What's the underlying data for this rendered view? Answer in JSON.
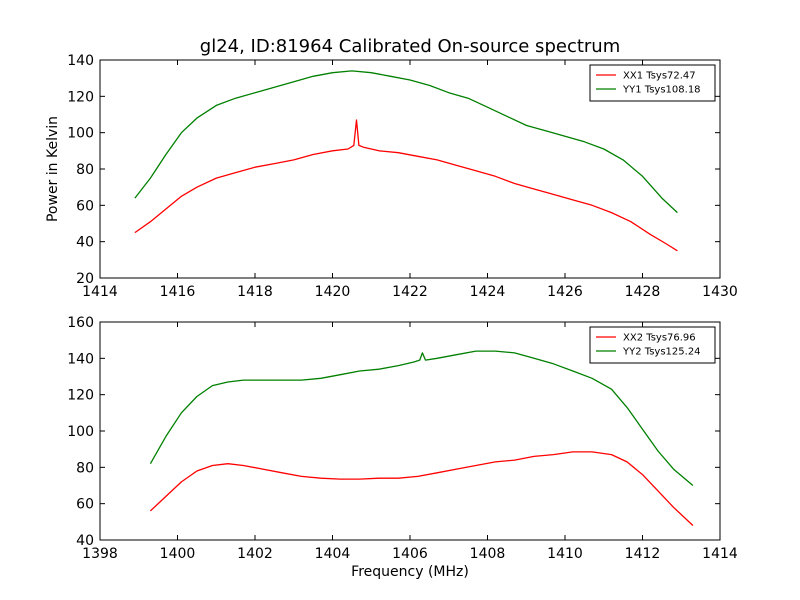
{
  "figure": {
    "title": "gl24, ID:81964 Calibrated On-source spectrum"
  },
  "chart_data": [
    {
      "type": "line",
      "title": "gl24, ID:81964 Calibrated On-source spectrum",
      "xlabel": "",
      "ylabel": "Power in Kelvin",
      "xlim": [
        1414,
        1430
      ],
      "ylim": [
        20,
        140
      ],
      "xticks": [
        1414,
        1416,
        1418,
        1420,
        1422,
        1424,
        1426,
        1428,
        1430
      ],
      "yticks": [
        20,
        40,
        60,
        80,
        100,
        120,
        140
      ],
      "grid": false,
      "legend": "top-right",
      "series": [
        {
          "name": "XX1 Tsys72.47",
          "color": "#ff0000",
          "x": [
            1414.9,
            1415.3,
            1415.7,
            1416.1,
            1416.5,
            1417.0,
            1417.5,
            1418.0,
            1418.5,
            1419.0,
            1419.5,
            1420.0,
            1420.4,
            1420.55,
            1420.62,
            1420.68,
            1420.8,
            1421.2,
            1421.7,
            1422.2,
            1422.7,
            1423.2,
            1423.7,
            1424.2,
            1424.7,
            1425.2,
            1425.7,
            1426.2,
            1426.7,
            1427.2,
            1427.7,
            1428.2,
            1428.6,
            1428.9
          ],
          "y": [
            45,
            51,
            58,
            65,
            70,
            75,
            78,
            81,
            83,
            85,
            88,
            90,
            91,
            93,
            107,
            93,
            92,
            90,
            89,
            87,
            85,
            82,
            79,
            76,
            72,
            69,
            66,
            63,
            60,
            56,
            51,
            44,
            39,
            35
          ]
        },
        {
          "name": "YY1 Tsys108.18",
          "color": "#008000",
          "x": [
            1414.9,
            1415.3,
            1415.7,
            1416.1,
            1416.5,
            1417.0,
            1417.5,
            1418.0,
            1418.5,
            1419.0,
            1419.5,
            1420.0,
            1420.5,
            1421.0,
            1421.5,
            1422.0,
            1422.5,
            1423.0,
            1423.5,
            1424.0,
            1424.5,
            1425.0,
            1425.5,
            1426.0,
            1426.5,
            1427.0,
            1427.5,
            1428.0,
            1428.5,
            1428.9
          ],
          "y": [
            64,
            75,
            88,
            100,
            108,
            115,
            119,
            122,
            125,
            128,
            131,
            133,
            134,
            133,
            131,
            129,
            126,
            122,
            119,
            114,
            109,
            104,
            101,
            98,
            95,
            91,
            85,
            76,
            64,
            56
          ]
        }
      ]
    },
    {
      "type": "line",
      "title": "",
      "xlabel": "Frequency (MHz)",
      "ylabel": "",
      "xlim": [
        1398,
        1414
      ],
      "ylim": [
        40,
        160
      ],
      "xticks": [
        1398,
        1400,
        1402,
        1404,
        1406,
        1408,
        1410,
        1412,
        1414
      ],
      "yticks": [
        40,
        60,
        80,
        100,
        120,
        140,
        160
      ],
      "grid": false,
      "legend": "top-right",
      "series": [
        {
          "name": "XX2 Tsys76.96",
          "color": "#ff0000",
          "x": [
            1399.3,
            1399.7,
            1400.1,
            1400.5,
            1400.9,
            1401.3,
            1401.7,
            1402.2,
            1402.7,
            1403.2,
            1403.7,
            1404.2,
            1404.7,
            1405.2,
            1405.7,
            1406.2,
            1406.7,
            1407.2,
            1407.7,
            1408.2,
            1408.7,
            1409.2,
            1409.7,
            1410.2,
            1410.7,
            1411.2,
            1411.6,
            1412.0,
            1412.4,
            1412.8,
            1413.3
          ],
          "y": [
            56,
            64,
            72,
            78,
            81,
            82,
            81,
            79,
            77,
            75,
            74,
            73.5,
            73.5,
            74,
            74,
            75,
            77,
            79,
            81,
            83,
            84,
            86,
            87,
            88.5,
            88.5,
            87,
            83,
            76,
            67,
            58,
            48
          ]
        },
        {
          "name": "YY2 Tsys125.24",
          "color": "#008000",
          "x": [
            1399.3,
            1399.7,
            1400.1,
            1400.5,
            1400.9,
            1401.3,
            1401.7,
            1402.2,
            1402.7,
            1403.2,
            1403.7,
            1404.2,
            1404.7,
            1405.2,
            1405.7,
            1406.1,
            1406.25,
            1406.32,
            1406.4,
            1406.7,
            1407.2,
            1407.7,
            1408.2,
            1408.7,
            1409.2,
            1409.7,
            1410.2,
            1410.7,
            1411.2,
            1411.6,
            1412.0,
            1412.4,
            1412.8,
            1413.3
          ],
          "y": [
            82,
            97,
            110,
            119,
            125,
            127,
            128,
            128,
            128,
            128,
            129,
            131,
            133,
            134,
            136,
            138,
            139,
            143,
            139,
            140,
            142,
            144,
            144,
            143,
            140,
            137,
            133,
            129,
            123,
            113,
            101,
            89,
            79,
            70
          ]
        }
      ]
    }
  ]
}
